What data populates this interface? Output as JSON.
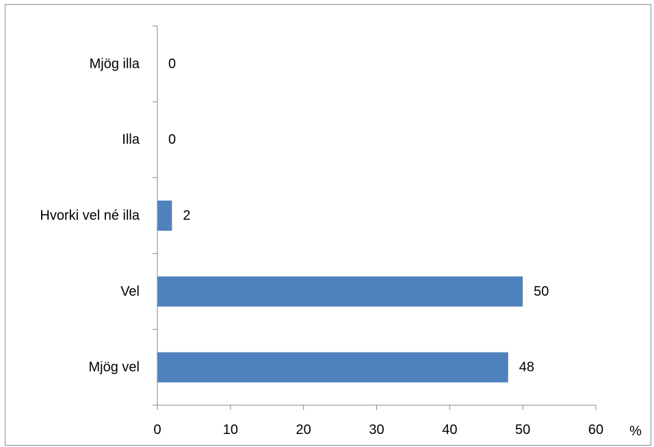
{
  "chart_data": {
    "type": "bar",
    "orientation": "horizontal",
    "categories": [
      "Mjög illa",
      "Illa",
      "Hvorki vel né illa",
      "Vel",
      "Mjög vel"
    ],
    "values": [
      0,
      0,
      2,
      50,
      48
    ],
    "xlim": [
      0,
      60
    ],
    "xticks": [
      0,
      10,
      20,
      30,
      40,
      50,
      60
    ],
    "x_unit": "%",
    "bar_color": "#4F81BD",
    "grid": false,
    "legend": "none"
  }
}
